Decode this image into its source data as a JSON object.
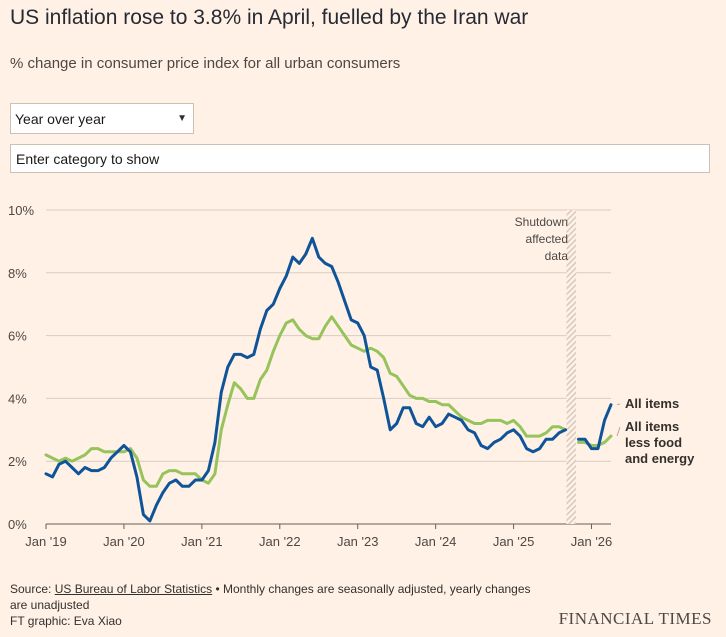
{
  "header": {
    "title": "US inflation rose to 3.8% in April, fuelled by the Iran war",
    "subtitle": "% change in consumer price index for all urban consumers"
  },
  "controls": {
    "mode_select": {
      "selected": "Year over year"
    },
    "category_input": {
      "placeholder": "Enter category to show",
      "value": ""
    }
  },
  "colors": {
    "all_items": "#0f5499",
    "core": "#96c35b",
    "grid": "#d9ccc1",
    "axis": "#66605c",
    "shade": "#d6c9bd",
    "background": "#fff1e5"
  },
  "chart_data": {
    "type": "line",
    "ylim": [
      0,
      10
    ],
    "yticks": [
      0,
      2,
      4,
      6,
      8,
      10
    ],
    "ytick_labels": [
      "0%",
      "2%",
      "4%",
      "6%",
      "8%",
      "10%"
    ],
    "xlim": [
      "2019-01",
      "2026-04"
    ],
    "xticks": [
      "2019-01",
      "2020-01",
      "2021-01",
      "2022-01",
      "2023-01",
      "2024-01",
      "2025-01",
      "2026-01"
    ],
    "xtick_labels": [
      "Jan '19",
      "Jan '20",
      "Jan '21",
      "Jan '22",
      "Jan '23",
      "Jan '24",
      "Jan '25",
      "Jan '26"
    ],
    "grid": true,
    "annotation": {
      "lines": [
        "Shutdown",
        "affected",
        "data"
      ],
      "x_start": "2025-09",
      "x_end": "2025-10"
    },
    "series": [
      {
        "name": "All items",
        "color": "#0f5499",
        "segments": [
          {
            "start": "2019-01",
            "values": [
              1.6,
              1.5,
              1.9,
              2.0,
              1.8,
              1.6,
              1.8,
              1.7,
              1.7,
              1.8,
              2.1,
              2.3,
              2.5,
              2.3,
              1.5,
              0.3,
              0.1,
              0.6,
              1.0,
              1.3,
              1.4,
              1.2,
              1.2,
              1.4,
              1.4,
              1.7,
              2.6,
              4.2,
              5.0,
              5.4,
              5.4,
              5.3,
              5.4,
              6.2,
              6.8,
              7.0,
              7.5,
              7.9,
              8.5,
              8.3,
              8.6,
              9.1,
              8.5,
              8.3,
              8.2,
              7.7,
              7.1,
              6.5,
              6.4,
              6.0,
              5.0,
              4.9,
              4.0,
              3.0,
              3.2,
              3.7,
              3.7,
              3.2,
              3.1,
              3.4,
              3.1,
              3.2,
              3.5,
              3.4,
              3.3,
              3.0,
              2.9,
              2.5,
              2.4,
              2.6,
              2.7,
              2.9,
              3.0,
              2.8,
              2.4,
              2.3,
              2.4,
              2.7,
              2.7,
              2.9,
              3.0
            ]
          },
          {
            "start": "2025-11",
            "values": [
              2.7,
              2.7,
              2.4,
              2.4,
              3.3,
              3.8
            ]
          }
        ]
      },
      {
        "name": "All items less food and energy",
        "color": "#96c35b",
        "segments": [
          {
            "start": "2019-01",
            "values": [
              2.2,
              2.1,
              2.0,
              2.1,
              2.0,
              2.1,
              2.2,
              2.4,
              2.4,
              2.3,
              2.3,
              2.3,
              2.3,
              2.4,
              2.1,
              1.4,
              1.2,
              1.2,
              1.6,
              1.7,
              1.7,
              1.6,
              1.6,
              1.6,
              1.4,
              1.3,
              1.6,
              3.0,
              3.8,
              4.5,
              4.3,
              4.0,
              4.0,
              4.6,
              4.9,
              5.5,
              6.0,
              6.4,
              6.5,
              6.2,
              6.0,
              5.9,
              5.9,
              6.3,
              6.6,
              6.3,
              6.0,
              5.7,
              5.6,
              5.5,
              5.6,
              5.5,
              5.3,
              4.8,
              4.7,
              4.4,
              4.1,
              4.0,
              4.0,
              3.9,
              3.9,
              3.8,
              3.8,
              3.6,
              3.4,
              3.3,
              3.2,
              3.2,
              3.3,
              3.3,
              3.3,
              3.2,
              3.3,
              3.1,
              2.8,
              2.8,
              2.8,
              2.9,
              3.1,
              3.1,
              3.0
            ]
          },
          {
            "start": "2025-11",
            "values": [
              2.6,
              2.6,
              2.5,
              2.5,
              2.6,
              2.8
            ]
          }
        ]
      }
    ],
    "end_labels": [
      {
        "series": 0,
        "lines": [
          "All items"
        ]
      },
      {
        "series": 1,
        "lines": [
          "All items",
          "less food",
          "and energy"
        ]
      }
    ]
  },
  "footer": {
    "source_prefix": "Source: ",
    "source_link": "US Bureau of Labor Statistics",
    "source_note": " • Monthly changes are seasonally adjusted, yearly changes are unadjusted",
    "credit": "FT graphic: Eva Xiao",
    "brand": "FINANCIAL TIMES"
  }
}
